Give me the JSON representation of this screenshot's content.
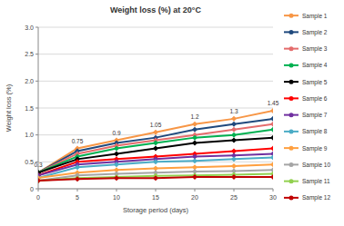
{
  "chart_data": {
    "type": "line",
    "title": "Weight loss (%) at 20°C",
    "x_label": "Storage period (days)",
    "y_label": "Weight loss (%)",
    "x": [
      0,
      5,
      10,
      15,
      20,
      25,
      30
    ],
    "xlim": [
      0,
      30
    ],
    "xticks": [
      0,
      5,
      10,
      15,
      20,
      25,
      30
    ],
    "ylim": [
      0,
      3.0
    ],
    "yticks": [
      0,
      0.5,
      {
        "value": 1,
        "label": "1.0"
      },
      1.5,
      {
        "value": 2,
        "label": "2.0"
      },
      2.5,
      {
        "value": 3,
        "label": "3.0"
      }
    ],
    "grid": true,
    "legend": "right",
    "marker": "diamond",
    "series": [
      {
        "name": "Sample 1",
        "color": "#f79646",
        "values": [
          0.3,
          0.75,
          0.9,
          1.05,
          1.2,
          1.3,
          1.45
        ],
        "data_labels": true
      },
      {
        "name": "Sample 2",
        "color": "#1f497d",
        "values": [
          0.3,
          0.7,
          0.85,
          0.95,
          1.1,
          1.2,
          1.3
        ]
      },
      {
        "name": "Sample 3",
        "color": "#e46c6c",
        "values": [
          0.3,
          0.65,
          0.8,
          0.9,
          1.0,
          1.1,
          1.2
        ]
      },
      {
        "name": "Sample 4",
        "color": "#00b050",
        "values": [
          0.3,
          0.6,
          0.75,
          0.85,
          0.95,
          1.0,
          1.1
        ]
      },
      {
        "name": "Sample 5",
        "color": "#000000",
        "values": [
          0.3,
          0.55,
          0.65,
          0.75,
          0.85,
          0.9,
          0.95
        ]
      },
      {
        "name": "Sample 6",
        "color": "#ff0000",
        "values": [
          0.25,
          0.5,
          0.55,
          0.6,
          0.65,
          0.7,
          0.75
        ]
      },
      {
        "name": "Sample 7",
        "color": "#7030a0",
        "values": [
          0.25,
          0.45,
          0.5,
          0.55,
          0.6,
          0.62,
          0.65
        ]
      },
      {
        "name": "Sample 8",
        "color": "#4bacc6",
        "values": [
          0.2,
          0.4,
          0.45,
          0.5,
          0.52,
          0.55,
          0.58
        ]
      },
      {
        "name": "Sample 9",
        "color": "#ffa040",
        "values": [
          0.2,
          0.3,
          0.35,
          0.38,
          0.4,
          0.42,
          0.45
        ]
      },
      {
        "name": "Sample 10",
        "color": "#a5a5a5",
        "values": [
          0.15,
          0.25,
          0.28,
          0.3,
          0.32,
          0.33,
          0.35
        ]
      },
      {
        "name": "Sample 11",
        "color": "#92d050",
        "values": [
          0.15,
          0.2,
          0.22,
          0.24,
          0.25,
          0.26,
          0.28
        ]
      },
      {
        "name": "Sample 12",
        "color": "#c00000",
        "values": [
          0.15,
          0.18,
          0.2,
          0.2,
          0.22,
          0.22,
          0.22
        ]
      }
    ]
  }
}
